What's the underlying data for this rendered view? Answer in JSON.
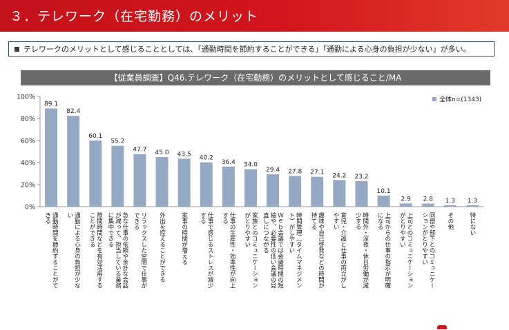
{
  "header": {
    "title": "３．テレワーク（在宅勤務）のメリット"
  },
  "summary": {
    "text": "テレワークのメリットとして感じることとしては、「通勤時間を節約することができる」「通勤による心身の負担が少ない」が多い。"
  },
  "colors": {
    "header_red": "#d2151d",
    "bar": "#95a9c4",
    "title_bar": "#6b6b6b"
  },
  "chart_data": {
    "type": "bar",
    "title": "【従業員調査】Q46.テレワーク（在宅勤務）のメリットとして感じること/MA",
    "ylim": [
      0,
      100
    ],
    "yticks": [
      "0%",
      "20%",
      "40%",
      "60%",
      "80%",
      "100%"
    ],
    "legend": "全体n=(1343)",
    "legend_position": "top-right",
    "grid": false,
    "categories": [
      "通勤時間を節約することができる",
      "通勤による心身の負担が少ない",
      "隙間時間などを有効活用することができる",
      "急な仕事の依頼や余計な会話が減って、担当している業務に集中できる",
      "リラックスした空間で仕事ができる",
      "外出を控えることができる",
      "家事の時間が増える",
      "仕事で感じるストレスが減少する",
      "仕事の生産性・効率性が向上する",
      "家族とのコミュニケーションがとりやすい",
      "Ｗｅｂ会議では会議時間の短縮や、必要性の低い会議の見直しにつながる",
      "時間管理（タイムマネジメント）がしやすい",
      "趣味や自己啓発などの時間が持てる",
      "育児・介護と仕事の両立がしやすい",
      "時間外・深夜・休日労働が減少する",
      "上司からの仕事の指示が明確になる",
      "上司とのコミュニケーションがとりやすい",
      "同僚や部下とのコミュニケーションがとりやすい",
      "その他",
      "特にない"
    ],
    "series": [
      {
        "name": "全体n=(1343)",
        "values": [
          89.1,
          82.4,
          60.1,
          55.2,
          47.7,
          45.0,
          43.5,
          40.2,
          36.4,
          34.0,
          29.4,
          27.8,
          27.1,
          24.2,
          23.2,
          10.1,
          2.9,
          2.8,
          1.3,
          1.3
        ],
        "labels": [
          "89.1",
          "82.4",
          "60.1",
          "55.2",
          "47.7",
          "45.0",
          "43.5",
          "40.2",
          "36.4",
          "34.0",
          "29.4",
          "27.8",
          "27.1",
          "24.2",
          "23.2",
          "10.1",
          "2.9",
          "2.8",
          "1.3",
          "1.3"
        ]
      }
    ]
  }
}
